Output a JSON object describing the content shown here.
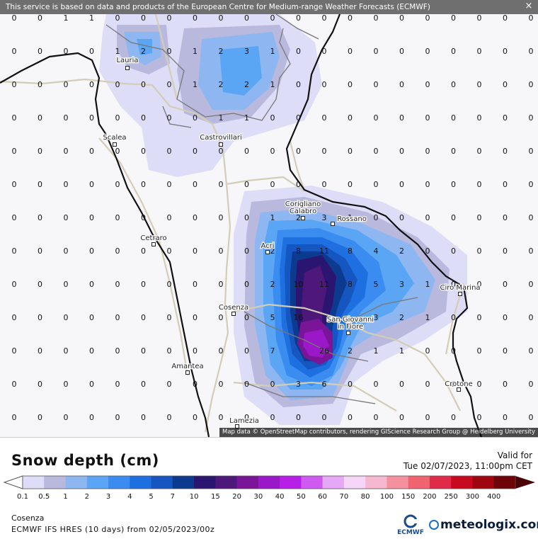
{
  "map": {
    "notice": "This service is based on data and products of the European Centre for Medium-range Weather Forecasts (ECMWF)",
    "close_icon": "×",
    "attribution": "Map data © OpenStreetMap contributors, rendering GIScience Research Group @ Heidelberg University",
    "cities": [
      {
        "name": "Lauria"
      },
      {
        "name": "Scalea"
      },
      {
        "name": "Castrovillari"
      },
      {
        "name": "Corigliano"
      },
      {
        "name": "Calabro"
      },
      {
        "name": "Rossano"
      },
      {
        "name": "Acri"
      },
      {
        "name": "Cetraro"
      },
      {
        "name": "Cosenza"
      },
      {
        "name": "San Giovanni"
      },
      {
        "name": "in Fiore"
      },
      {
        "name": "Ciro Marina"
      },
      {
        "name": "Amantea"
      },
      {
        "name": "Crotone"
      },
      {
        "name": "Lamezia"
      }
    ],
    "grid": [
      [
        "0",
        "0",
        "1",
        "1",
        "0",
        "0",
        "0",
        "0",
        "0",
        "0",
        "0",
        "0",
        "0",
        "0",
        "0",
        "0",
        "0",
        "0",
        "0",
        "0",
        "0"
      ],
      [
        "0",
        "0",
        "0",
        "0",
        "1",
        "2",
        "0",
        "1",
        "2",
        "3",
        "1",
        "0",
        "0",
        "0",
        "0",
        "0",
        "0",
        "0",
        "0",
        "0",
        "0"
      ],
      [
        "0",
        "0",
        "0",
        "0",
        "0",
        "0",
        "0",
        "1",
        "2",
        "2",
        "1",
        "0",
        "0",
        "0",
        "0",
        "0",
        "0",
        "0",
        "0",
        "0",
        "0"
      ],
      [
        "0",
        "0",
        "0",
        "0",
        "0",
        "0",
        "0",
        "0",
        "1",
        "1",
        "0",
        "0",
        "0",
        "0",
        "0",
        "0",
        "0",
        "0",
        "0",
        "0",
        "0"
      ],
      [
        "0",
        "0",
        "0",
        "0",
        "0",
        "0",
        "0",
        "0",
        "0",
        "0",
        "0",
        "0",
        "0",
        "0",
        "0",
        "0",
        "0",
        "0",
        "0",
        "0",
        "0"
      ],
      [
        "0",
        "0",
        "0",
        "0",
        "0",
        "0",
        "0",
        "0",
        "0",
        "0",
        "0",
        "0",
        "0",
        "0",
        "0",
        "0",
        "0",
        "0",
        "0",
        "0",
        "0"
      ],
      [
        "0",
        "0",
        "0",
        "0",
        "0",
        "0",
        "0",
        "0",
        "0",
        "0",
        "1",
        "2",
        "3",
        "1",
        "0",
        "0",
        "0",
        "0",
        "0",
        "0",
        "0"
      ],
      [
        "0",
        "0",
        "0",
        "0",
        "0",
        "0",
        "0",
        "0",
        "0",
        "0",
        "2",
        "8",
        "11",
        "8",
        "4",
        "2",
        "0",
        "0",
        "0",
        "0",
        "0"
      ],
      [
        "0",
        "0",
        "0",
        "0",
        "0",
        "0",
        "0",
        "0",
        "0",
        "0",
        "2",
        "10",
        "11",
        "8",
        "5",
        "3",
        "1",
        "0",
        "0",
        "0",
        "0"
      ],
      [
        "0",
        "0",
        "0",
        "0",
        "0",
        "0",
        "0",
        "0",
        "0",
        "0",
        "5",
        "16",
        "",
        "",
        "3",
        "2",
        "1",
        "0",
        "0",
        "0",
        "0"
      ],
      [
        "0",
        "0",
        "0",
        "0",
        "0",
        "0",
        "0",
        "0",
        "0",
        "0",
        "7",
        "",
        "26",
        "2",
        "1",
        "1",
        "0",
        "0",
        "0",
        "0",
        "0"
      ],
      [
        "0",
        "0",
        "0",
        "0",
        "0",
        "0",
        "0",
        "0",
        "0",
        "0",
        "0",
        "3",
        "6",
        "0",
        "0",
        "0",
        "0",
        "0",
        "0",
        "0",
        "0"
      ],
      [
        "0",
        "0",
        "0",
        "0",
        "0",
        "0",
        "0",
        "0",
        "0",
        "0",
        "0",
        "0",
        "0",
        "0",
        "0",
        "0",
        "0",
        "0",
        "0",
        "0",
        "0"
      ]
    ]
  },
  "legend": {
    "title": "Snow depth (cm)",
    "valid_label": "Valid for",
    "valid_time": "Tue 02/07/2023, 11:00pm CET",
    "location": "Cosenza",
    "model": "ECMWF IFS HRES (10 days) from 02/05/2023/00z",
    "ecmwf": "ECMWF",
    "brand": "meteologix.com",
    "ticks": [
      "0.1",
      "0.5",
      "1",
      "2",
      "3",
      "4",
      "5",
      "7",
      "10",
      "15",
      "20",
      "30",
      "40",
      "50",
      "60",
      "70",
      "80",
      "100",
      "150",
      "200",
      "250",
      "300",
      "400"
    ],
    "colors": [
      "#ddddf8",
      "#b9b9de",
      "#8eb7f2",
      "#5aa6f5",
      "#3a8cf0",
      "#1e70e0",
      "#1656c0",
      "#0b3a8e",
      "#2a1670",
      "#4e177a",
      "#7a1598",
      "#9a18c8",
      "#b81fe6",
      "#cf5af0",
      "#e5a8f5",
      "#f5d6f8",
      "#f5b8d0",
      "#f5919f",
      "#ef6470",
      "#e12a48",
      "#c80a20",
      "#9e0610",
      "#6e0408"
    ],
    "under_color": "#ffffff",
    "over_color": "#4a0206"
  }
}
